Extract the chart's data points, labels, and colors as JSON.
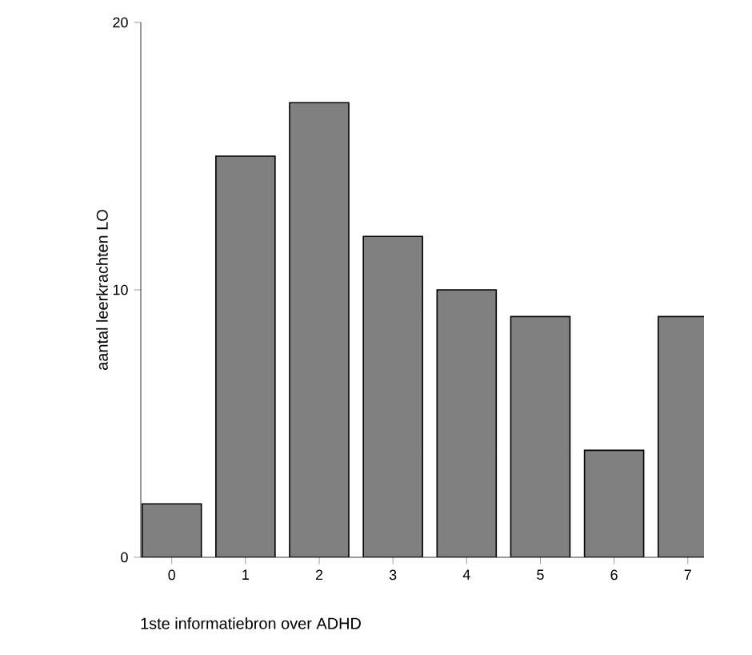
{
  "chart_data": {
    "type": "bar",
    "xlabel": "1ste informatiebron over ADHD",
    "ylabel": "aantal leerkrachten LO",
    "categories": [
      "0",
      "1",
      "2",
      "3",
      "4",
      "5",
      "6",
      "7"
    ],
    "values": [
      2,
      15,
      17,
      12,
      10,
      9,
      4,
      9
    ],
    "color": "#808080",
    "ylim": [
      0,
      20
    ],
    "yticks": [
      0,
      10,
      20
    ]
  }
}
